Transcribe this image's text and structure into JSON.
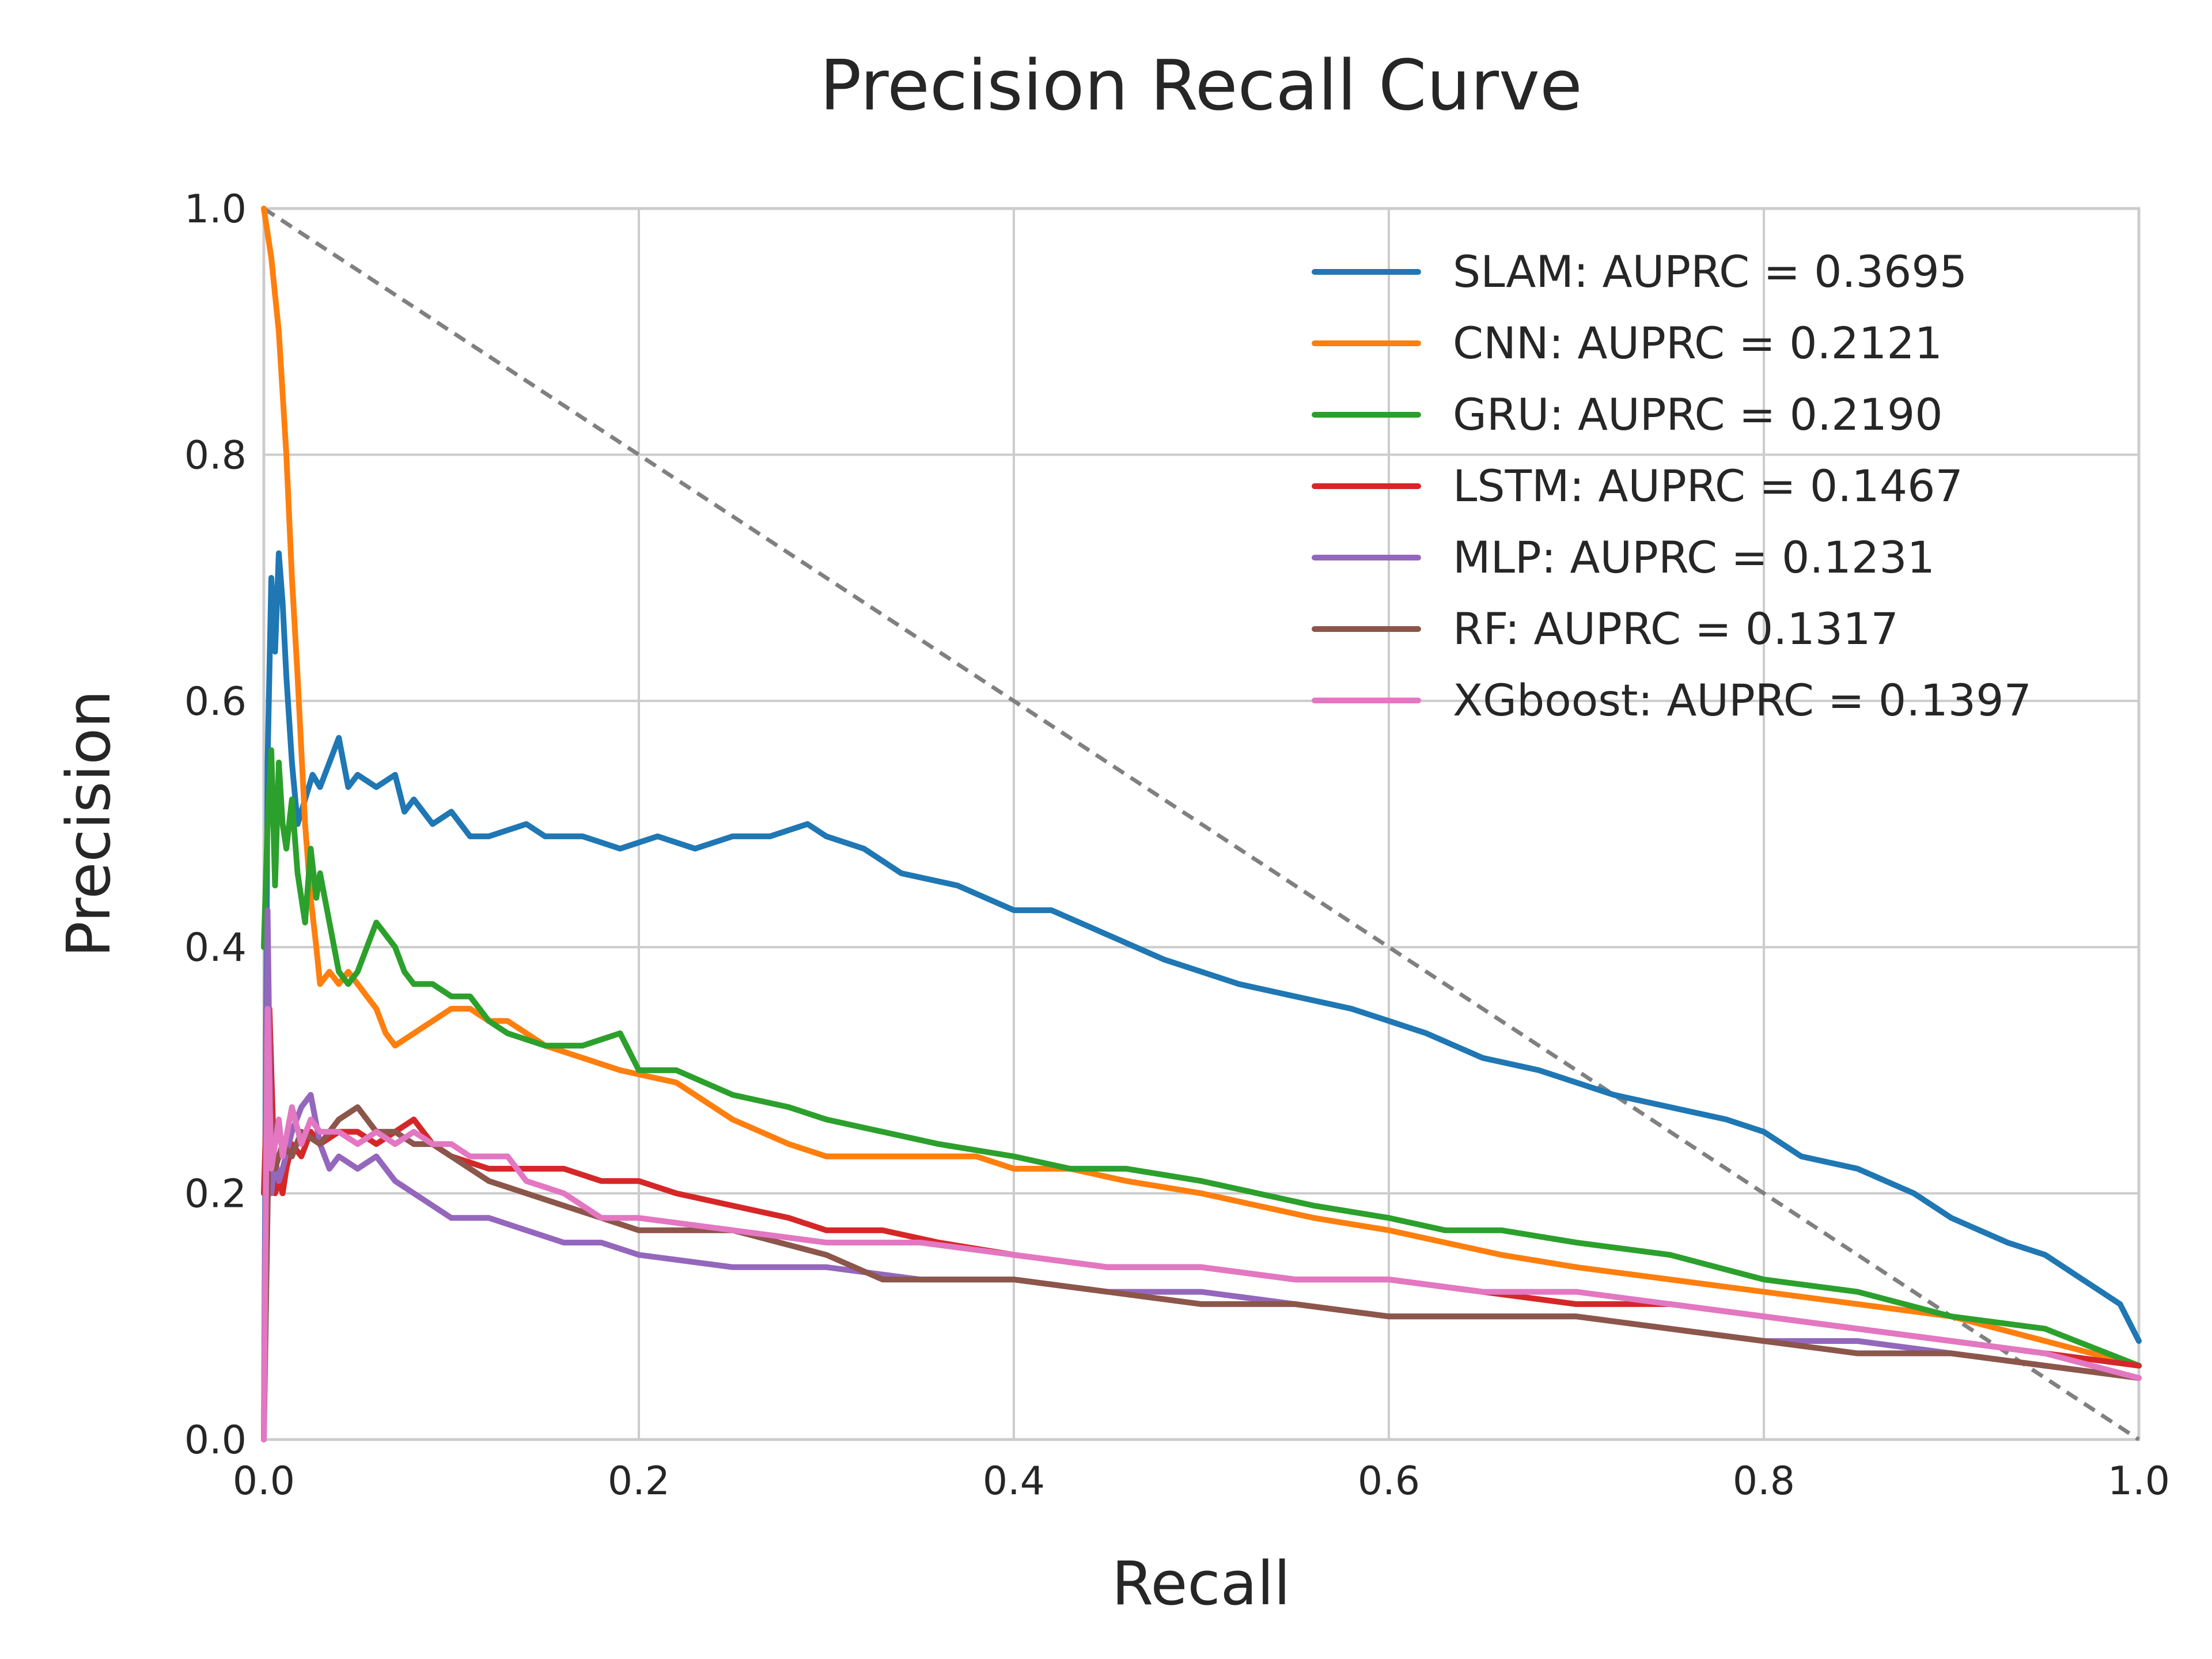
{
  "chart_data": {
    "type": "line",
    "title": "Precision Recall Curve",
    "xlabel": "Recall",
    "ylabel": "Precision",
    "xlim": [
      0.0,
      1.0
    ],
    "ylim": [
      0.0,
      1.0
    ],
    "xticks": [
      "0.0",
      "0.2",
      "0.4",
      "0.6",
      "0.8",
      "1.0"
    ],
    "yticks": [
      "0.0",
      "0.2",
      "0.4",
      "0.6",
      "0.8",
      "1.0"
    ],
    "grid": true,
    "legend_position": "top-right",
    "reference_line": {
      "style": "dashed",
      "color": "#808080",
      "x": [
        0.0,
        1.0
      ],
      "y": [
        1.0,
        0.0
      ]
    },
    "series": [
      {
        "name": "SLAM: AUPRC = 0.3695",
        "color": "#1f77b4",
        "x": [
          0.0,
          0.002,
          0.004,
          0.006,
          0.008,
          0.01,
          0.012,
          0.015,
          0.018,
          0.022,
          0.026,
          0.03,
          0.035,
          0.04,
          0.045,
          0.05,
          0.06,
          0.07,
          0.075,
          0.08,
          0.09,
          0.1,
          0.11,
          0.12,
          0.14,
          0.15,
          0.17,
          0.19,
          0.21,
          0.23,
          0.25,
          0.27,
          0.29,
          0.3,
          0.32,
          0.34,
          0.37,
          0.4,
          0.42,
          0.45,
          0.48,
          0.5,
          0.52,
          0.55,
          0.58,
          0.6,
          0.62,
          0.65,
          0.68,
          0.7,
          0.72,
          0.75,
          0.78,
          0.8,
          0.82,
          0.85,
          0.88,
          0.9,
          0.93,
          0.95,
          0.97,
          0.98,
          0.99,
          1.0
        ],
        "y": [
          0.0,
          0.55,
          0.7,
          0.64,
          0.72,
          0.68,
          0.62,
          0.55,
          0.5,
          0.52,
          0.54,
          0.53,
          0.55,
          0.57,
          0.53,
          0.54,
          0.53,
          0.54,
          0.51,
          0.52,
          0.5,
          0.51,
          0.49,
          0.49,
          0.5,
          0.49,
          0.49,
          0.48,
          0.49,
          0.48,
          0.49,
          0.49,
          0.5,
          0.49,
          0.48,
          0.46,
          0.45,
          0.43,
          0.43,
          0.41,
          0.39,
          0.38,
          0.37,
          0.36,
          0.35,
          0.34,
          0.33,
          0.31,
          0.3,
          0.29,
          0.28,
          0.27,
          0.26,
          0.25,
          0.23,
          0.22,
          0.2,
          0.18,
          0.16,
          0.15,
          0.13,
          0.12,
          0.11,
          0.08
        ]
      },
      {
        "name": "CNN: AUPRC = 0.2121",
        "color": "#ff7f0e",
        "x": [
          0.0,
          0.002,
          0.004,
          0.006,
          0.008,
          0.01,
          0.012,
          0.015,
          0.018,
          0.02,
          0.022,
          0.025,
          0.028,
          0.03,
          0.035,
          0.04,
          0.045,
          0.05,
          0.06,
          0.065,
          0.07,
          0.08,
          0.09,
          0.1,
          0.11,
          0.12,
          0.13,
          0.15,
          0.17,
          0.19,
          0.22,
          0.25,
          0.28,
          0.3,
          0.32,
          0.35,
          0.38,
          0.4,
          0.43,
          0.46,
          0.5,
          0.53,
          0.56,
          0.6,
          0.63,
          0.66,
          0.7,
          0.75,
          0.8,
          0.85,
          0.9,
          0.95,
          1.0
        ],
        "y": [
          1.0,
          0.98,
          0.96,
          0.93,
          0.9,
          0.85,
          0.8,
          0.7,
          0.62,
          0.56,
          0.5,
          0.44,
          0.4,
          0.37,
          0.38,
          0.37,
          0.38,
          0.37,
          0.35,
          0.33,
          0.32,
          0.33,
          0.34,
          0.35,
          0.35,
          0.34,
          0.34,
          0.32,
          0.31,
          0.3,
          0.29,
          0.26,
          0.24,
          0.23,
          0.23,
          0.23,
          0.23,
          0.22,
          0.22,
          0.21,
          0.2,
          0.19,
          0.18,
          0.17,
          0.16,
          0.15,
          0.14,
          0.13,
          0.12,
          0.11,
          0.1,
          0.08,
          0.06
        ]
      },
      {
        "name": "GRU: AUPRC = 0.2190",
        "color": "#2ca02c",
        "x": [
          0.0,
          0.002,
          0.004,
          0.006,
          0.008,
          0.01,
          0.012,
          0.015,
          0.018,
          0.02,
          0.022,
          0.025,
          0.028,
          0.03,
          0.035,
          0.04,
          0.045,
          0.05,
          0.055,
          0.06,
          0.065,
          0.07,
          0.075,
          0.08,
          0.09,
          0.1,
          0.11,
          0.12,
          0.13,
          0.15,
          0.17,
          0.19,
          0.2,
          0.22,
          0.25,
          0.28,
          0.3,
          0.33,
          0.36,
          0.4,
          0.43,
          0.46,
          0.5,
          0.53,
          0.56,
          0.6,
          0.63,
          0.66,
          0.7,
          0.75,
          0.8,
          0.85,
          0.9,
          0.95,
          1.0
        ],
        "y": [
          0.4,
          0.5,
          0.56,
          0.45,
          0.55,
          0.5,
          0.48,
          0.52,
          0.46,
          0.44,
          0.42,
          0.48,
          0.44,
          0.46,
          0.42,
          0.38,
          0.37,
          0.38,
          0.4,
          0.42,
          0.41,
          0.4,
          0.38,
          0.37,
          0.37,
          0.36,
          0.36,
          0.34,
          0.33,
          0.32,
          0.32,
          0.33,
          0.3,
          0.3,
          0.28,
          0.27,
          0.26,
          0.25,
          0.24,
          0.23,
          0.22,
          0.22,
          0.21,
          0.2,
          0.19,
          0.18,
          0.17,
          0.17,
          0.16,
          0.15,
          0.13,
          0.12,
          0.1,
          0.09,
          0.06
        ]
      },
      {
        "name": "LSTM: AUPRC = 0.1467",
        "color": "#d62728",
        "x": [
          0.0,
          0.003,
          0.006,
          0.008,
          0.01,
          0.012,
          0.015,
          0.02,
          0.025,
          0.03,
          0.04,
          0.05,
          0.06,
          0.07,
          0.08,
          0.09,
          0.1,
          0.12,
          0.14,
          0.16,
          0.18,
          0.2,
          0.22,
          0.25,
          0.28,
          0.3,
          0.33,
          0.36,
          0.4,
          0.45,
          0.5,
          0.55,
          0.6,
          0.65,
          0.7,
          0.75,
          0.8,
          0.85,
          0.9,
          0.95,
          1.0
        ],
        "y": [
          0.2,
          0.35,
          0.2,
          0.21,
          0.2,
          0.22,
          0.24,
          0.23,
          0.25,
          0.24,
          0.25,
          0.25,
          0.24,
          0.25,
          0.26,
          0.24,
          0.23,
          0.22,
          0.22,
          0.22,
          0.21,
          0.21,
          0.2,
          0.19,
          0.18,
          0.17,
          0.17,
          0.16,
          0.15,
          0.14,
          0.14,
          0.13,
          0.13,
          0.12,
          0.11,
          0.11,
          0.1,
          0.09,
          0.08,
          0.07,
          0.06
        ]
      },
      {
        "name": "MLP: AUPRC = 0.1231",
        "color": "#9467bd",
        "x": [
          0.0,
          0.002,
          0.004,
          0.006,
          0.008,
          0.01,
          0.015,
          0.02,
          0.025,
          0.03,
          0.035,
          0.04,
          0.05,
          0.06,
          0.07,
          0.08,
          0.09,
          0.1,
          0.12,
          0.14,
          0.16,
          0.18,
          0.2,
          0.25,
          0.3,
          0.35,
          0.4,
          0.45,
          0.5,
          0.55,
          0.6,
          0.65,
          0.7,
          0.75,
          0.8,
          0.85,
          0.9,
          0.95,
          1.0
        ],
        "y": [
          0.0,
          0.43,
          0.2,
          0.23,
          0.21,
          0.22,
          0.25,
          0.27,
          0.28,
          0.24,
          0.22,
          0.23,
          0.22,
          0.23,
          0.21,
          0.2,
          0.19,
          0.18,
          0.18,
          0.17,
          0.16,
          0.16,
          0.15,
          0.14,
          0.14,
          0.13,
          0.13,
          0.12,
          0.12,
          0.11,
          0.1,
          0.1,
          0.1,
          0.09,
          0.08,
          0.08,
          0.07,
          0.06,
          0.05
        ]
      },
      {
        "name": "RF: AUPRC = 0.1317",
        "color": "#8c564b",
        "x": [
          0.0,
          0.003,
          0.006,
          0.01,
          0.015,
          0.02,
          0.03,
          0.04,
          0.05,
          0.06,
          0.07,
          0.08,
          0.09,
          0.1,
          0.12,
          0.14,
          0.16,
          0.18,
          0.2,
          0.25,
          0.3,
          0.33,
          0.36,
          0.4,
          0.45,
          0.5,
          0.55,
          0.6,
          0.65,
          0.7,
          0.75,
          0.8,
          0.85,
          0.9,
          0.95,
          1.0
        ],
        "y": [
          0.0,
          0.28,
          0.22,
          0.24,
          0.23,
          0.25,
          0.24,
          0.26,
          0.27,
          0.25,
          0.25,
          0.24,
          0.24,
          0.23,
          0.21,
          0.2,
          0.19,
          0.18,
          0.17,
          0.17,
          0.15,
          0.13,
          0.13,
          0.13,
          0.12,
          0.11,
          0.11,
          0.1,
          0.1,
          0.1,
          0.09,
          0.08,
          0.07,
          0.07,
          0.06,
          0.05
        ]
      },
      {
        "name": "XGboost: AUPRC = 0.1397",
        "color": "#e377c2",
        "x": [
          0.0,
          0.002,
          0.004,
          0.006,
          0.008,
          0.01,
          0.015,
          0.02,
          0.025,
          0.03,
          0.04,
          0.05,
          0.06,
          0.07,
          0.08,
          0.09,
          0.1,
          0.11,
          0.12,
          0.13,
          0.14,
          0.16,
          0.18,
          0.2,
          0.25,
          0.3,
          0.35,
          0.4,
          0.45,
          0.5,
          0.55,
          0.6,
          0.65,
          0.7,
          0.75,
          0.8,
          0.85,
          0.9,
          0.95,
          1.0
        ],
        "y": [
          0.0,
          0.35,
          0.22,
          0.24,
          0.26,
          0.23,
          0.27,
          0.24,
          0.26,
          0.25,
          0.25,
          0.24,
          0.25,
          0.24,
          0.25,
          0.24,
          0.24,
          0.23,
          0.23,
          0.23,
          0.21,
          0.2,
          0.18,
          0.18,
          0.17,
          0.16,
          0.16,
          0.15,
          0.14,
          0.14,
          0.13,
          0.13,
          0.12,
          0.12,
          0.11,
          0.1,
          0.09,
          0.08,
          0.07,
          0.05
        ]
      }
    ]
  }
}
